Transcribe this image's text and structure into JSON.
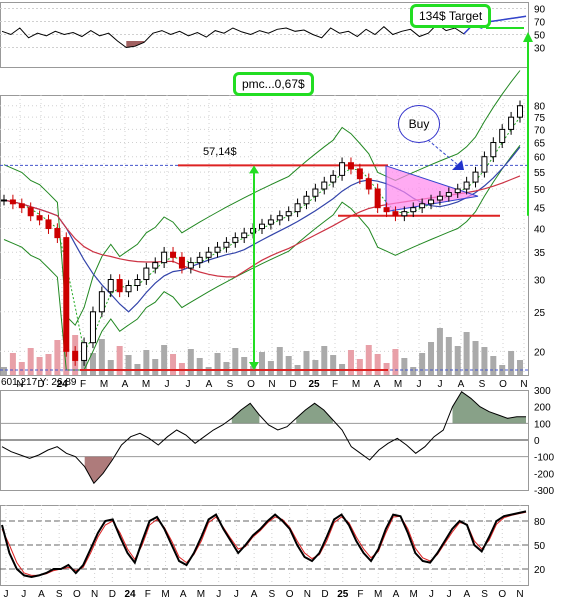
{
  "annotations": {
    "target_label": "134$ Target",
    "pmc_label": "pmc...0,67$",
    "level_label": "57,14$",
    "buy_label": "Buy",
    "readout": "601,217  Y: 26.89"
  },
  "colors": {
    "grid": "#d0d0d0",
    "candle_up": "#000000",
    "candle_down": "#cc0000",
    "volume_up": "#aaaaaa",
    "volume_down": "#e8a0a8",
    "ma_short": "#22aa22",
    "ma_mid": "#3344aa",
    "ma_long": "#cc3344",
    "bollinger": "#228822",
    "level_line": "#dd2222",
    "target_arrow": "#22dd22",
    "triangle_fill": "#ff88ee"
  },
  "chart_data": [
    {
      "type": "line",
      "panel": "top-oscillator",
      "y_ticks": [
        "90",
        "70",
        "50",
        "30"
      ],
      "ylim": [
        0,
        100
      ],
      "reference_lines": [
        70,
        50,
        30
      ],
      "series": [
        {
          "values": [
            55,
            50,
            60,
            45,
            52,
            48,
            55,
            50,
            53,
            47,
            56,
            48,
            52,
            40,
            30,
            32,
            38,
            52,
            56,
            50,
            55,
            48,
            53,
            46,
            56,
            52,
            60,
            54,
            50,
            56,
            52,
            58,
            60,
            55,
            57,
            50,
            45,
            60,
            52,
            55,
            47,
            58,
            50,
            62,
            50,
            55,
            58,
            47,
            52,
            66,
            56,
            60,
            51,
            65,
            60,
            70,
            72,
            74,
            76,
            78
          ]
        }
      ]
    },
    {
      "type": "line",
      "panel": "price",
      "y_ticks": [
        "80",
        "75",
        "70",
        "65",
        "60",
        "55",
        "50",
        "45",
        "40",
        "35",
        "30",
        "25",
        "20"
      ],
      "y_scale": "log",
      "ylim": [
        17.5,
        85
      ],
      "x_labels": [
        "N",
        "D",
        "24",
        "F",
        "M",
        "A",
        "M",
        "J",
        "J",
        "A",
        "S",
        "O",
        "N",
        "D",
        "25",
        "F",
        "M",
        "A",
        "M",
        "J",
        "J",
        "A",
        "S",
        "O",
        "N"
      ],
      "x_year_labels": [
        "24",
        "25"
      ],
      "level_lines": [
        57.14,
        43,
        18
      ],
      "series": [
        {
          "values": [
            47,
            46,
            45,
            43,
            42,
            40,
            38,
            20,
            19,
            21,
            25,
            28,
            30,
            28,
            29,
            30,
            32,
            33,
            35,
            34,
            32,
            33,
            34,
            35,
            36,
            37,
            38,
            39,
            40,
            41,
            42,
            43,
            44,
            46,
            48,
            50,
            52,
            54,
            58,
            56,
            53,
            50,
            45,
            44,
            43,
            44,
            45,
            46,
            47,
            48,
            49,
            50,
            52,
            55,
            60,
            65,
            70,
            75,
            80
          ]
        }
      ]
    },
    {
      "type": "line",
      "panel": "cci",
      "y_ticks": [
        "300",
        "200",
        "100",
        "0",
        "-100",
        "-200",
        "-300"
      ],
      "ylim": [
        -300,
        300
      ],
      "reference_lines": [
        100,
        0,
        -100
      ],
      "series": [
        {
          "values": [
            -40,
            -70,
            -90,
            -110,
            -90,
            -60,
            -40,
            -80,
            -100,
            -160,
            -260,
            -200,
            -120,
            -30,
            20,
            40,
            10,
            -30,
            20,
            60,
            30,
            -20,
            20,
            60,
            90,
            130,
            180,
            220,
            150,
            90,
            60,
            80,
            130,
            180,
            220,
            180,
            120,
            60,
            -40,
            -80,
            -120,
            -60,
            -20,
            10,
            -30,
            -80,
            -40,
            20,
            60,
            200,
            290,
            250,
            200,
            170,
            150,
            130,
            140,
            140
          ]
        }
      ]
    },
    {
      "type": "line",
      "panel": "stochastic",
      "y_ticks": [
        "80",
        "50",
        "20"
      ],
      "ylim": [
        0,
        100
      ],
      "reference_lines": [
        80,
        50,
        20
      ],
      "x_labels": [
        "J",
        "J",
        "A",
        "S",
        "O",
        "N",
        "D",
        "24",
        "F",
        "M",
        "A",
        "M",
        "J",
        "J",
        "A",
        "S",
        "O",
        "N",
        "D",
        "25",
        "F",
        "M",
        "A",
        "M",
        "J",
        "J",
        "A",
        "S",
        "O",
        "N"
      ],
      "x_year_labels": [
        "24",
        "25"
      ],
      "series": [
        {
          "values": [
            75,
            40,
            20,
            12,
            10,
            12,
            15,
            20,
            20,
            25,
            15,
            25,
            45,
            65,
            80,
            82,
            60,
            40,
            28,
            55,
            80,
            85,
            70,
            50,
            30,
            25,
            40,
            60,
            82,
            88,
            70,
            55,
            40,
            50,
            62,
            70,
            80,
            88,
            80,
            70,
            50,
            35,
            30,
            40,
            60,
            82,
            88,
            75,
            55,
            40,
            30,
            45,
            70,
            88,
            86,
            65,
            40,
            30,
            28,
            40,
            55,
            70,
            80,
            75,
            50,
            42,
            60,
            80,
            86,
            88,
            90,
            92
          ]
        },
        {
          "values": [
            70,
            50,
            28,
            15,
            12,
            12,
            14,
            18,
            20,
            22,
            18,
            22,
            40,
            60,
            75,
            80,
            65,
            45,
            32,
            50,
            75,
            82,
            72,
            55,
            35,
            28,
            38,
            55,
            78,
            85,
            72,
            58,
            45,
            48,
            60,
            68,
            78,
            85,
            82,
            72,
            55,
            40,
            33,
            38,
            55,
            78,
            85,
            78,
            60,
            45,
            34,
            42,
            65,
            85,
            86,
            70,
            46,
            34,
            30,
            38,
            52,
            66,
            78,
            76,
            55,
            45,
            56,
            76,
            84,
            87,
            89,
            91
          ]
        }
      ]
    }
  ]
}
